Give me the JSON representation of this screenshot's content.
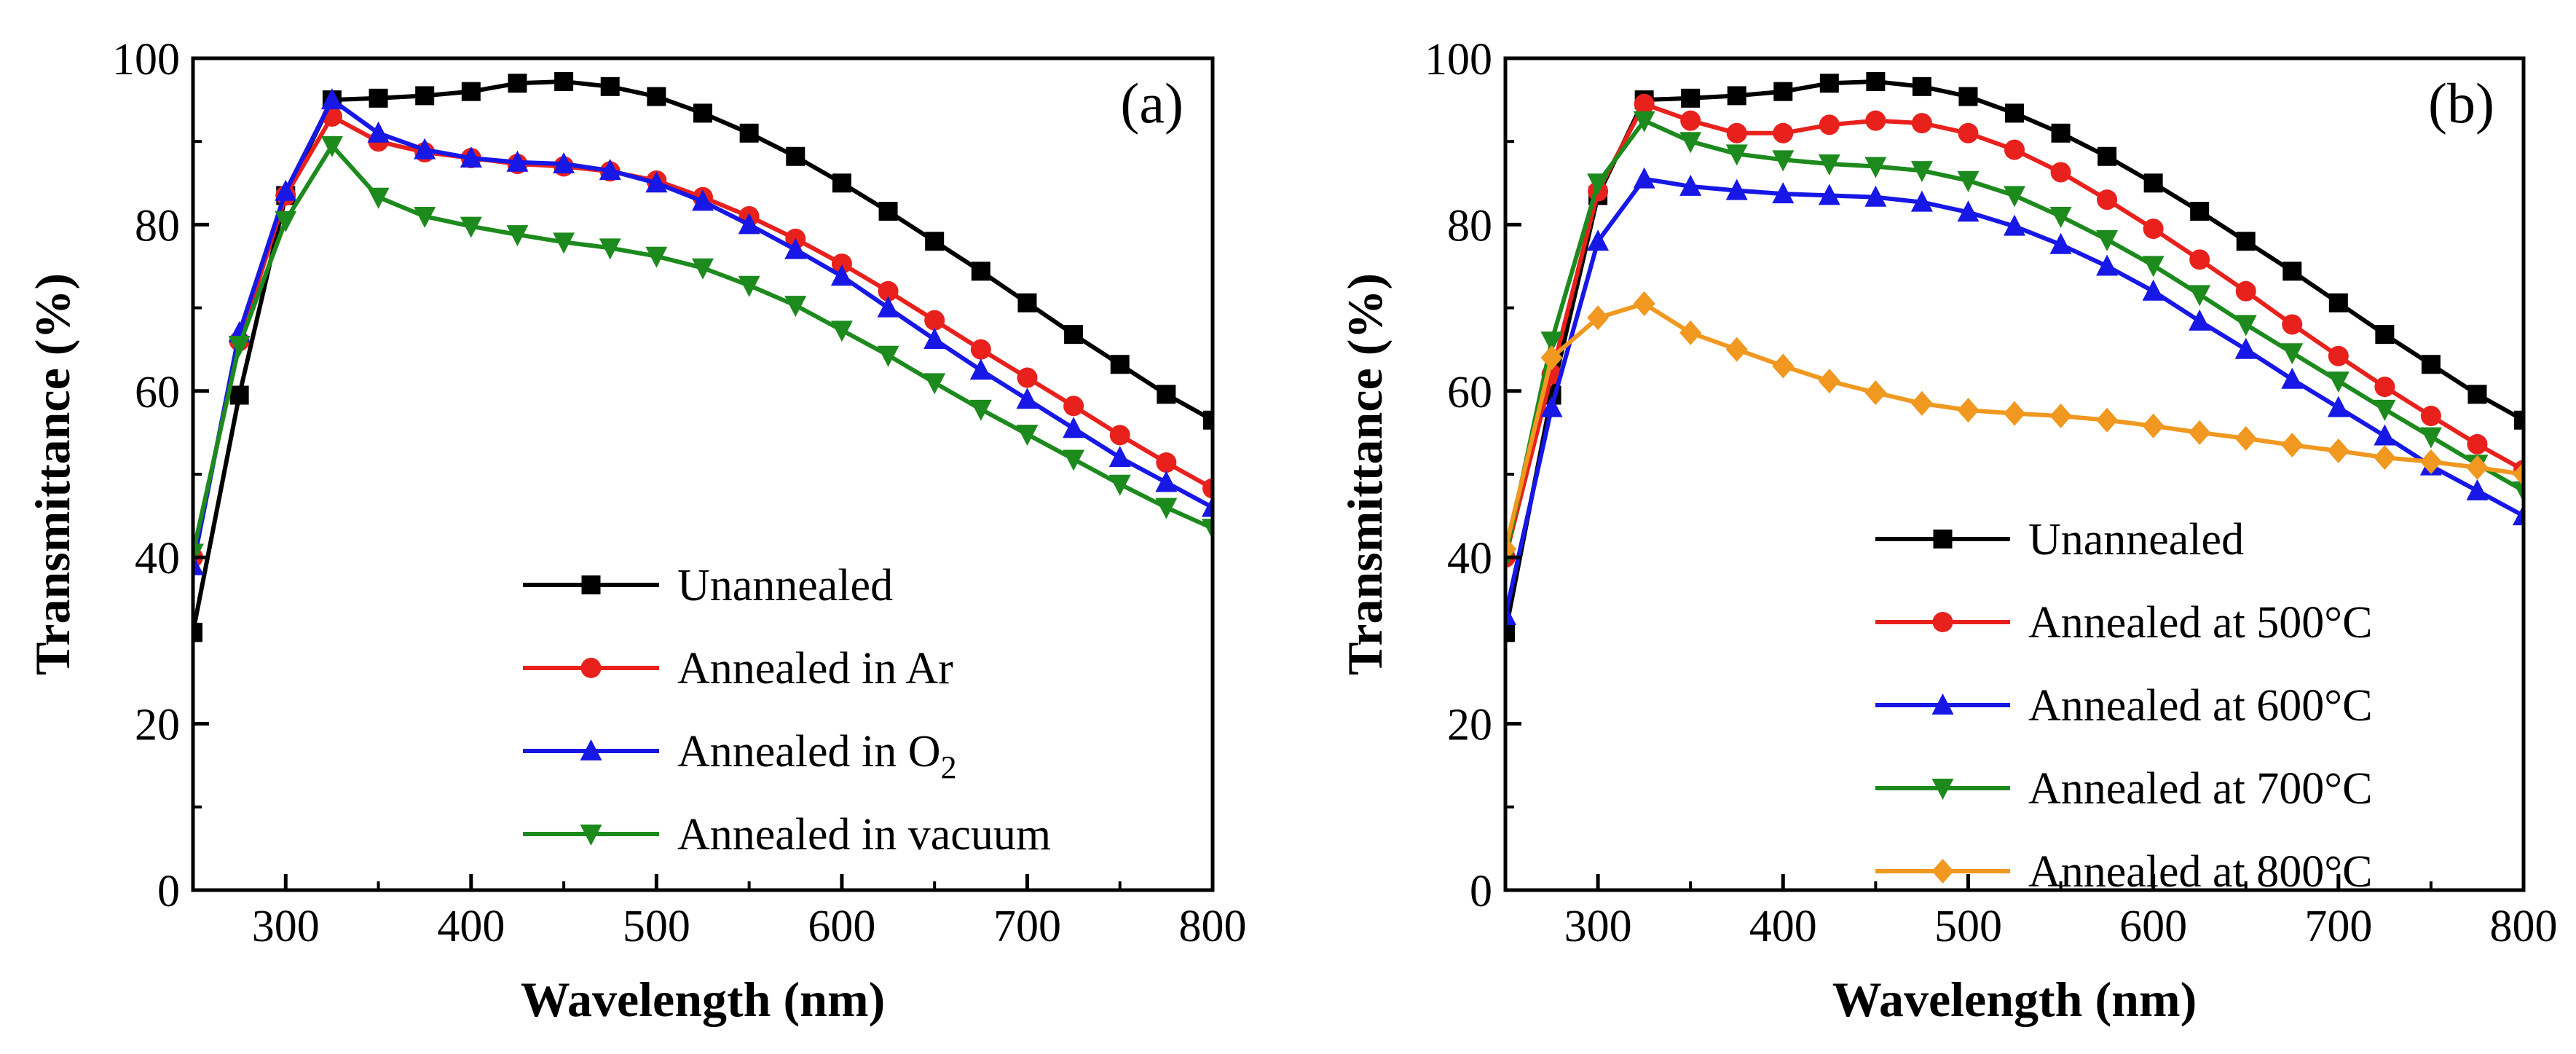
{
  "chart_data": [
    {
      "type": "line",
      "panel_label": "(a)",
      "xlabel": "Wavelength (nm)",
      "ylabel": "Transmittance (%)",
      "xlim": [
        250,
        800
      ],
      "ylim": [
        0,
        100
      ],
      "xticks": [
        300,
        400,
        500,
        600,
        700,
        800
      ],
      "yticks": [
        0,
        20,
        40,
        60,
        80,
        100
      ],
      "legend_position": "bottom-right",
      "series": [
        {
          "name": "Unannealed",
          "color": "#000000",
          "marker": "square",
          "x": [
            250,
            275,
            300,
            325,
            350,
            375,
            400,
            425,
            450,
            475,
            500,
            525,
            550,
            575,
            600,
            625,
            650,
            675,
            700,
            725,
            750,
            775,
            800
          ],
          "y": [
            31,
            59.5,
            83.5,
            95,
            95.2,
            95.5,
            96,
            97,
            97.2,
            96.6,
            95.4,
            93.4,
            91,
            88.2,
            85,
            81.6,
            78,
            74.4,
            70.6,
            66.8,
            63.2,
            59.6,
            56.5
          ]
        },
        {
          "name": "Annealed in Ar",
          "color": "#e8211d",
          "marker": "circle",
          "x": [
            250,
            275,
            300,
            325,
            350,
            375,
            400,
            425,
            450,
            475,
            500,
            525,
            550,
            575,
            600,
            625,
            650,
            675,
            700,
            725,
            750,
            775,
            800
          ],
          "y": [
            40,
            66,
            83.5,
            93,
            90,
            88.7,
            88,
            87.3,
            87,
            86.4,
            85.3,
            83.3,
            81,
            78.3,
            75.3,
            72,
            68.5,
            65,
            61.6,
            58.2,
            54.7,
            51.4,
            48.3
          ]
        },
        {
          "name": "Annealed in O",
          "name_sub": "2",
          "color": "#1717e6",
          "marker": "triangle-up",
          "x": [
            250,
            275,
            300,
            325,
            350,
            375,
            400,
            425,
            450,
            475,
            500,
            525,
            550,
            575,
            600,
            625,
            650,
            675,
            700,
            725,
            750,
            775,
            800
          ],
          "y": [
            39,
            67,
            84,
            95,
            91,
            89,
            88,
            87.5,
            87.3,
            86.5,
            85,
            82.8,
            80,
            77,
            73.8,
            70,
            66.2,
            62.5,
            59,
            55.5,
            52,
            49,
            46
          ]
        },
        {
          "name": "Annealed in vacuum",
          "color": "#1d8a1d",
          "marker": "triangle-down",
          "x": [
            250,
            275,
            300,
            325,
            350,
            375,
            400,
            425,
            450,
            475,
            500,
            525,
            550,
            575,
            600,
            625,
            650,
            675,
            700,
            725,
            750,
            775,
            800
          ],
          "y": [
            40.5,
            65.5,
            80.5,
            89.5,
            83.3,
            81,
            79.8,
            78.8,
            77.9,
            77.2,
            76.2,
            74.8,
            72.7,
            70.3,
            67.3,
            64.3,
            61,
            57.8,
            54.8,
            51.8,
            48.8,
            46,
            43.5
          ]
        }
      ]
    },
    {
      "type": "line",
      "panel_label": "(b)",
      "xlabel": "Wavelength (nm)",
      "ylabel": "Transmittance (%)",
      "xlim": [
        250,
        800
      ],
      "ylim": [
        0,
        100
      ],
      "xticks": [
        300,
        400,
        500,
        600,
        700,
        800
      ],
      "yticks": [
        0,
        20,
        40,
        60,
        80,
        100
      ],
      "legend_position": "bottom-right",
      "series": [
        {
          "name": "Unannealed",
          "color": "#000000",
          "marker": "square",
          "x": [
            250,
            275,
            300,
            325,
            350,
            375,
            400,
            425,
            450,
            475,
            500,
            525,
            550,
            575,
            600,
            625,
            650,
            675,
            700,
            725,
            750,
            775,
            800
          ],
          "y": [
            31,
            59.5,
            83.5,
            95,
            95.2,
            95.5,
            96,
            97,
            97.2,
            96.6,
            95.4,
            93.4,
            91,
            88.2,
            85,
            81.6,
            78,
            74.4,
            70.6,
            66.8,
            63.2,
            59.6,
            56.5
          ]
        },
        {
          "name": "Annealed at 500°C",
          "color": "#e8211d",
          "marker": "circle",
          "x": [
            250,
            275,
            300,
            325,
            350,
            375,
            400,
            425,
            450,
            475,
            500,
            525,
            550,
            575,
            600,
            625,
            650,
            675,
            700,
            725,
            750,
            775,
            800
          ],
          "y": [
            40,
            62,
            84,
            94.5,
            92.5,
            91,
            91,
            92,
            92.5,
            92.2,
            91,
            89,
            86.3,
            83,
            79.5,
            75.8,
            72,
            68,
            64.2,
            60.5,
            57,
            53.6,
            50.5
          ]
        },
        {
          "name": "Annealed at 600°C",
          "color": "#1717e6",
          "marker": "triangle-up",
          "x": [
            250,
            275,
            300,
            325,
            350,
            375,
            400,
            425,
            450,
            475,
            500,
            525,
            550,
            575,
            600,
            625,
            650,
            675,
            700,
            725,
            750,
            775,
            800
          ],
          "y": [
            33,
            58,
            78,
            85.5,
            84.6,
            84.1,
            83.7,
            83.5,
            83.3,
            82.7,
            81.5,
            79.8,
            77.6,
            75,
            72,
            68.4,
            65,
            61.4,
            58,
            54.6,
            51,
            48,
            45
          ]
        },
        {
          "name": "Annealed at 700°C",
          "color": "#1d8a1d",
          "marker": "triangle-down",
          "x": [
            250,
            275,
            300,
            325,
            350,
            375,
            400,
            425,
            450,
            475,
            500,
            525,
            550,
            575,
            600,
            625,
            650,
            675,
            700,
            725,
            750,
            775,
            800
          ],
          "y": [
            40,
            66,
            85,
            92.5,
            90,
            88.5,
            87.8,
            87.3,
            87,
            86.5,
            85.3,
            83.5,
            81,
            78.2,
            75.1,
            71.6,
            68,
            64.6,
            61.2,
            57.8,
            54.5,
            51.2,
            48
          ]
        },
        {
          "name": "Annealed at 800°C",
          "color": "#f0981f",
          "marker": "diamond",
          "x": [
            250,
            275,
            300,
            325,
            350,
            375,
            400,
            425,
            450,
            475,
            500,
            525,
            550,
            575,
            600,
            625,
            650,
            675,
            700,
            725,
            750,
            775,
            800
          ],
          "y": [
            41,
            64,
            68.8,
            70.5,
            67,
            65,
            63,
            61.2,
            59.8,
            58.5,
            57.7,
            57.3,
            57,
            56.5,
            55.8,
            55,
            54.3,
            53.5,
            52.8,
            52,
            51.5,
            50.8,
            50
          ]
        }
      ]
    }
  ]
}
